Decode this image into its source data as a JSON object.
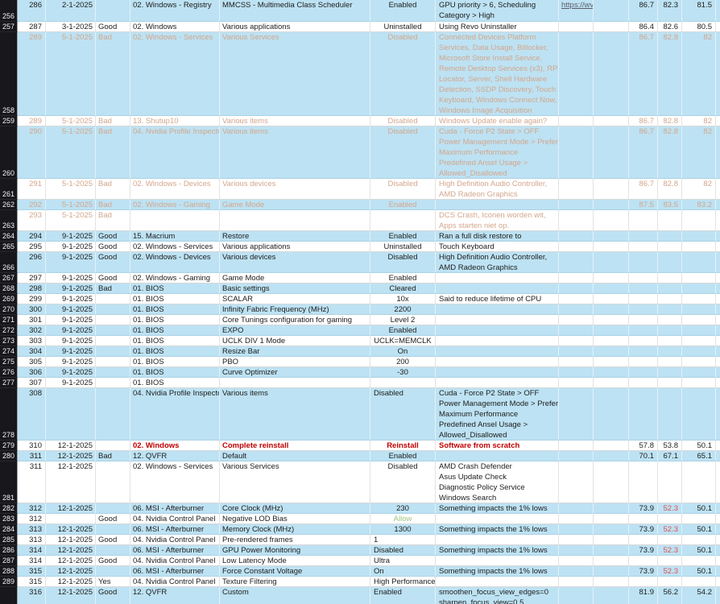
{
  "app": {
    "kind": "spreadsheet-grid",
    "visible_row_headers_first": "256",
    "visible_row_headers_last": "289"
  },
  "colors": {
    "row_fill_blue": "#bde2f3",
    "row_fill_white": "#ffffff",
    "row_header_bg": "#17171c",
    "row_header_text": "#f2f2f2",
    "text_normal": "#1d1d1d",
    "text_faded": "#d3a68c",
    "text_red_bold": "#c00000",
    "text_alert_red": "#e05353",
    "text_good_green": "#a3c57f"
  },
  "rows": [
    {
      "header": "256",
      "blue": true,
      "tone": "normal",
      "entry": "286",
      "date": "2-1-2025",
      "flag": "",
      "category": "02. Windows - Registry",
      "description": "MMCSS - Multimedia Class Scheduler",
      "status": "Enabled",
      "notes": [
        "GPU priority > 6, Scheduling",
        "Category > High"
      ],
      "link": "https://wv",
      "v1": "86.7",
      "v2": "82.3",
      "v3": "81.5",
      "v2_red": false,
      "status_left": false,
      "status_green": false
    },
    {
      "header": "257",
      "blue": false,
      "tone": "normal",
      "entry": "287",
      "date": "3-1-2025",
      "flag": "Good",
      "category": "02. Windows",
      "description": "Various applications",
      "status": "Uninstalled",
      "notes": [
        "Using Revo Uninstaller"
      ],
      "link": "",
      "v1": "86.4",
      "v2": "82.6",
      "v3": "80.5",
      "v2_red": false,
      "status_left": false,
      "status_green": false
    },
    {
      "header": "258",
      "blue": true,
      "tone": "faded",
      "entry": "289",
      "date": "5-1-2025",
      "flag": "Bad",
      "category": "02. Windows - Services",
      "description": "Various Services",
      "status": "Disabled",
      "notes": [
        "Connected Devices Platform",
        "Services, Data Usage, Bitlocker,",
        "Microsoft Store Install Service,",
        "Remote Desktop Services (x3), RPC",
        "Locator, Server, Shell Hardware",
        "Detection, SSDP Discovery, Touch",
        "Keyboard, Windows Connect Now,",
        "Windows Image Acquisition"
      ],
      "link": "",
      "v1": "86.7",
      "v2": "82.8",
      "v3": "82",
      "v2_red": false,
      "status_left": false,
      "status_green": false
    },
    {
      "header": "259",
      "blue": false,
      "tone": "faded",
      "entry": "289",
      "date": "5-1-2025",
      "flag": "Bad",
      "category": "13. Shutup10",
      "description": "Various items",
      "status": "Disabled",
      "notes": [
        "Windows Update enable again?"
      ],
      "link": "",
      "v1": "86.7",
      "v2": "82.8",
      "v3": "82",
      "v2_red": false,
      "status_left": false,
      "status_green": false
    },
    {
      "header": "260",
      "blue": true,
      "tone": "faded",
      "entry": "290",
      "date": "5-1-2025",
      "flag": "Bad",
      "category": "04. Nvidia Profile Inspector",
      "description": "Various items",
      "status": "Disabled",
      "notes": [
        "Cuda - Force P2 State > OFF",
        "Power Management Mode > Prefer",
        "Maximum Performance",
        "Predefined Ansel Usage >",
        "Allowed_Disallowed"
      ],
      "link": "",
      "v1": "86.7",
      "v2": "82.8",
      "v3": "82",
      "v2_red": false,
      "status_left": false,
      "status_green": false
    },
    {
      "header": "261",
      "blue": false,
      "tone": "faded",
      "entry": "291",
      "date": "5-1-2025",
      "flag": "Bad",
      "category": "02. Windows - Devices",
      "description": "Various devices",
      "status": "Disabled",
      "notes": [
        "High Definition Audio Controller,",
        "AMD Radeon Graphics"
      ],
      "link": "",
      "v1": "86.7",
      "v2": "82.8",
      "v3": "82",
      "v2_red": false,
      "status_left": false,
      "status_green": false
    },
    {
      "header": "262",
      "blue": true,
      "tone": "faded",
      "entry": "292",
      "date": "5-1-2025",
      "flag": "Bad",
      "category": "02. Windows - Gaming",
      "description": "Game Mode",
      "status": "Enabled",
      "notes": [],
      "link": "",
      "v1": "87.5",
      "v2": "83.5",
      "v3": "83.2",
      "v2_red": false,
      "status_left": false,
      "status_green": false
    },
    {
      "header": "263",
      "blue": false,
      "tone": "faded",
      "entry": "293",
      "date": "5-1-2025",
      "flag": "Bad",
      "category": "",
      "description": "",
      "status": "",
      "notes": [
        "DCS Crash, Iconen worden wit,",
        "Apps starten niet op."
      ],
      "link": "",
      "v1": "",
      "v2": "",
      "v3": "",
      "v2_red": false,
      "status_left": false,
      "status_green": false
    },
    {
      "header": "264",
      "blue": true,
      "tone": "normal",
      "entry": "294",
      "date": "9-1-2025",
      "flag": "Good",
      "category": "15. Macrium",
      "description": "Restore",
      "status": "Enabled",
      "notes": [
        "Ran a full disk restore to"
      ],
      "link": "",
      "v1": "",
      "v2": "",
      "v3": "",
      "v2_red": false,
      "status_left": false,
      "status_green": false
    },
    {
      "header": "265",
      "blue": false,
      "tone": "normal",
      "entry": "295",
      "date": "9-1-2025",
      "flag": "Good",
      "category": "02. Windows - Services",
      "description": "Various applications",
      "status": "Uninstalled",
      "notes": [
        "Touch Keyboard"
      ],
      "link": "",
      "v1": "",
      "v2": "",
      "v3": "",
      "v2_red": false,
      "status_left": false,
      "status_green": false
    },
    {
      "header": "266",
      "blue": true,
      "tone": "normal",
      "entry": "296",
      "date": "9-1-2025",
      "flag": "Good",
      "category": "02. Windows - Devices",
      "description": "Various devices",
      "status": "Disabled",
      "notes": [
        "High Definition Audio Controller,",
        "AMD Radeon Graphics"
      ],
      "link": "",
      "v1": "",
      "v2": "",
      "v3": "",
      "v2_red": false,
      "status_left": false,
      "status_green": false
    },
    {
      "header": "267",
      "blue": false,
      "tone": "normal",
      "entry": "297",
      "date": "9-1-2025",
      "flag": "Good",
      "category": "02. Windows - Gaming",
      "description": "Game Mode",
      "status": "Enabled",
      "notes": [],
      "link": "",
      "v1": "",
      "v2": "",
      "v3": "",
      "v2_red": false,
      "status_left": false,
      "status_green": false
    },
    {
      "header": "268",
      "blue": true,
      "tone": "normal",
      "entry": "298",
      "date": "9-1-2025",
      "flag": "Bad",
      "category": "01. BIOS",
      "description": "Basic settings",
      "status": "Cleared",
      "notes": [],
      "link": "",
      "v1": "",
      "v2": "",
      "v3": "",
      "v2_red": false,
      "status_left": false,
      "status_green": false
    },
    {
      "header": "269",
      "blue": false,
      "tone": "normal",
      "entry": "299",
      "date": "9-1-2025",
      "flag": "",
      "category": "01. BIOS",
      "description": "SCALAR",
      "status": "10x",
      "notes": [
        "Said to reduce lifetime of CPU"
      ],
      "link": "",
      "v1": "",
      "v2": "",
      "v3": "",
      "v2_red": false,
      "status_left": false,
      "status_green": false
    },
    {
      "header": "270",
      "blue": true,
      "tone": "normal",
      "entry": "300",
      "date": "9-1-2025",
      "flag": "",
      "category": "01. BIOS",
      "description": "Infinity Fabric Frequency (MHz)",
      "status": "2200",
      "notes": [],
      "link": "",
      "v1": "",
      "v2": "",
      "v3": "",
      "v2_red": false,
      "status_left": false,
      "status_green": false
    },
    {
      "header": "271",
      "blue": false,
      "tone": "normal",
      "entry": "301",
      "date": "9-1-2025",
      "flag": "",
      "category": "01. BIOS",
      "description": "Core Tunings configuration for gaming",
      "status": "Level 2",
      "notes": [],
      "link": "",
      "v1": "",
      "v2": "",
      "v3": "",
      "v2_red": false,
      "status_left": false,
      "status_green": false
    },
    {
      "header": "272",
      "blue": true,
      "tone": "normal",
      "entry": "302",
      "date": "9-1-2025",
      "flag": "",
      "category": "01. BIOS",
      "description": "EXPO",
      "status": "Enabled",
      "notes": [],
      "link": "",
      "v1": "",
      "v2": "",
      "v3": "",
      "v2_red": false,
      "status_left": false,
      "status_green": false
    },
    {
      "header": "273",
      "blue": false,
      "tone": "normal",
      "entry": "303",
      "date": "9-1-2025",
      "flag": "",
      "category": "01. BIOS",
      "description": "UCLK DIV 1 Mode",
      "status": "UCLK=MEMCLK",
      "notes": [],
      "link": "",
      "v1": "",
      "v2": "",
      "v3": "",
      "v2_red": false,
      "status_left": false,
      "status_green": false
    },
    {
      "header": "274",
      "blue": true,
      "tone": "normal",
      "entry": "304",
      "date": "9-1-2025",
      "flag": "",
      "category": "01. BIOS",
      "description": "Resize Bar",
      "status": "On",
      "notes": [],
      "link": "",
      "v1": "",
      "v2": "",
      "v3": "",
      "v2_red": false,
      "status_left": false,
      "status_green": false
    },
    {
      "header": "275",
      "blue": false,
      "tone": "normal",
      "entry": "305",
      "date": "9-1-2025",
      "flag": "",
      "category": "01. BIOS",
      "description": "PBO",
      "status": "200",
      "notes": [],
      "link": "",
      "v1": "",
      "v2": "",
      "v3": "",
      "v2_red": false,
      "status_left": false,
      "status_green": false
    },
    {
      "header": "276",
      "blue": true,
      "tone": "normal",
      "entry": "306",
      "date": "9-1-2025",
      "flag": "",
      "category": "01. BIOS",
      "description": "Curve Optimizer",
      "status": "-30",
      "notes": [],
      "link": "",
      "v1": "",
      "v2": "",
      "v3": "",
      "v2_red": false,
      "status_left": false,
      "status_green": false
    },
    {
      "header": "277",
      "blue": false,
      "tone": "normal",
      "entry": "307",
      "date": "9-1-2025",
      "flag": "",
      "category": "01. BIOS",
      "description": "",
      "status": "",
      "notes": [],
      "link": "",
      "v1": "",
      "v2": "",
      "v3": "",
      "v2_red": false,
      "status_left": false,
      "status_green": false
    },
    {
      "header": "278",
      "blue": true,
      "tone": "normal",
      "entry": "308",
      "date": "",
      "flag": "",
      "category": "04. Nvidia Profile Inspector",
      "description": "Various items",
      "status": "Disabled",
      "notes": [
        "Cuda - Force P2 State > OFF",
        "Power Management Mode > Prefer",
        "Maximum Performance",
        "Predefined Ansel Usage >",
        "Allowed_Disallowed"
      ],
      "link": "",
      "v1": "",
      "v2": "",
      "v3": "",
      "v2_red": false,
      "status_left": true,
      "status_green": false
    },
    {
      "header": "279",
      "blue": false,
      "tone": "red",
      "entry": "310",
      "date": "12-1-2025",
      "flag": "",
      "category": "02. Windows",
      "description": "Complete reinstall",
      "status": "Reinstall",
      "notes": [
        "Software from scratch"
      ],
      "link": "",
      "v1": "57.8",
      "v2": "53.8",
      "v3": "50.1",
      "v2_red": false,
      "status_left": false,
      "status_green": false
    },
    {
      "header": "280",
      "blue": true,
      "tone": "normal",
      "entry": "311",
      "date": "12-1-2025",
      "flag": "Bad",
      "category": "12. QVFR",
      "description": "Default",
      "status": "Enabled",
      "notes": [],
      "link": "",
      "v1": "70.1",
      "v2": "67.1",
      "v3": "65.1",
      "v2_red": false,
      "status_left": false,
      "status_green": false
    },
    {
      "header": "281",
      "blue": false,
      "tone": "normal",
      "entry": "311",
      "date": "12-1-2025",
      "flag": "",
      "category": "02. Windows - Services",
      "description": "Various Services",
      "status": "Disabled",
      "notes": [
        "AMD Crash Defender",
        "Asus Update Check",
        "Diagnostic Policy Service",
        "Windows Search"
      ],
      "link": "",
      "v1": "",
      "v2": "",
      "v3": "",
      "v2_red": false,
      "status_left": false,
      "status_green": false
    },
    {
      "header": "282",
      "blue": true,
      "tone": "normal",
      "entry": "312",
      "date": "12-1-2025",
      "flag": "",
      "category": "06. MSI - Afterburner",
      "description": "Core Clock (MHz)",
      "status": "230",
      "notes": [
        "Something impacts the 1% lows"
      ],
      "link": "",
      "v1": "73.9",
      "v2": "52.3",
      "v3": "50.1",
      "v2_red": true,
      "status_left": false,
      "status_green": false
    },
    {
      "header": "283",
      "blue": false,
      "tone": "normal",
      "entry": "312",
      "date": "",
      "flag": "Good",
      "category": "04. Nvidia Control Panel",
      "description": "Negative LOD Bias",
      "status": "Allow",
      "notes": [],
      "link": "",
      "v1": "",
      "v2": "",
      "v3": "",
      "v2_red": false,
      "status_left": false,
      "status_green": true
    },
    {
      "header": "284",
      "blue": true,
      "tone": "normal",
      "entry": "313",
      "date": "12-1-2025",
      "flag": "",
      "category": "06. MSI - Afterburner",
      "description": "Memory Clock (MHz)",
      "status": "1300",
      "notes": [
        "Something impacts the 1% lows"
      ],
      "link": "",
      "v1": "73.9",
      "v2": "52.3",
      "v3": "50.1",
      "v2_red": true,
      "status_left": false,
      "status_green": false
    },
    {
      "header": "285",
      "blue": false,
      "tone": "normal",
      "entry": "313",
      "date": "12-1-2025",
      "flag": "Good",
      "category": "04. Nvidia Control Panel",
      "description": "Pre-rendered frames",
      "status": "1",
      "notes": [],
      "link": "",
      "v1": "",
      "v2": "",
      "v3": "",
      "v2_red": false,
      "status_left": true,
      "status_green": false
    },
    {
      "header": "286",
      "blue": true,
      "tone": "normal",
      "entry": "314",
      "date": "12-1-2025",
      "flag": "",
      "category": "06. MSI - Afterburner",
      "description": "GPU Power Monitoring",
      "status": "Disabled",
      "notes": [
        "Something impacts the 1% lows"
      ],
      "link": "",
      "v1": "73.9",
      "v2": "52.3",
      "v3": "50.1",
      "v2_red": true,
      "status_left": true,
      "status_green": false
    },
    {
      "header": "287",
      "blue": false,
      "tone": "normal",
      "entry": "314",
      "date": "12-1-2025",
      "flag": "Good",
      "category": "04. Nvidia Control Panel",
      "description": "Low Latency Mode",
      "status": "Ultra",
      "notes": [],
      "link": "",
      "v1": "",
      "v2": "",
      "v3": "",
      "v2_red": false,
      "status_left": true,
      "status_green": false
    },
    {
      "header": "288",
      "blue": true,
      "tone": "normal",
      "entry": "315",
      "date": "12-1-2025",
      "flag": "",
      "category": "06. MSI - Afterburner",
      "description": "Force Constant Voltage",
      "status": "On",
      "notes": [
        "Something impacts the 1% lows"
      ],
      "link": "",
      "v1": "73.9",
      "v2": "52.3",
      "v3": "50.1",
      "v2_red": true,
      "status_left": true,
      "status_green": false
    },
    {
      "header": "289",
      "blue": false,
      "tone": "normal",
      "entry": "315",
      "date": "12-1-2025",
      "flag": "Yes",
      "category": "04. Nvidia Control Panel",
      "description": "Texture Filtering",
      "status": "High Performance",
      "notes": [],
      "link": "",
      "v1": "",
      "v2": "",
      "v3": "",
      "v2_red": false,
      "status_left": true,
      "status_green": false
    },
    {
      "header": "",
      "blue": true,
      "tone": "normal",
      "entry": "316",
      "date": "12-1-2025",
      "flag": "Good",
      "category": "12. QVFR",
      "description": "Custom",
      "status": "Enabled",
      "notes": [
        "smoothen_focus_view_edges=0",
        "sharpen_focus_view=0.5"
      ],
      "link": "",
      "v1": "81.9",
      "v2": "56.2",
      "v3": "54.2",
      "v2_red": false,
      "status_left": true,
      "status_green": false
    }
  ]
}
